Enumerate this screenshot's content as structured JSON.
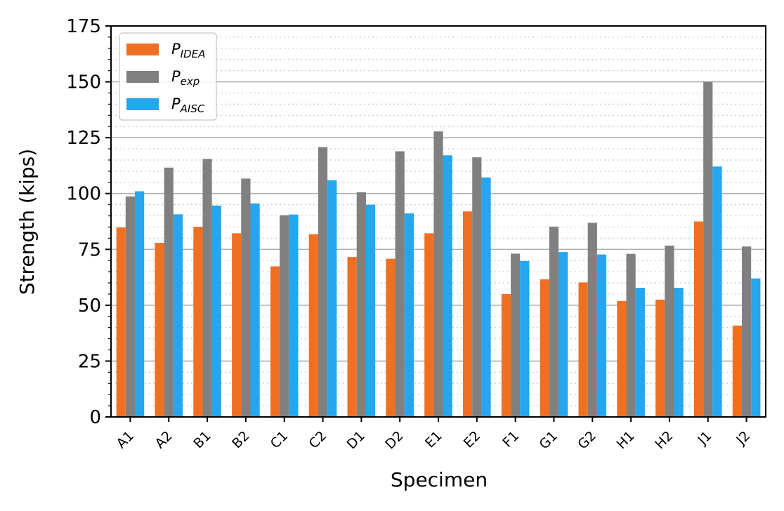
{
  "chart_data": {
    "type": "bar",
    "categories": [
      "A1",
      "A2",
      "B1",
      "B2",
      "C1",
      "C2",
      "D1",
      "D2",
      "E1",
      "E2",
      "F1",
      "G1",
      "G2",
      "H1",
      "H2",
      "J1",
      "J2"
    ],
    "series": [
      {
        "name": "P_IDEA",
        "label_base": "P",
        "label_sub": "IDEA",
        "color": "#f07023",
        "values": [
          84.8,
          77.9,
          85.1,
          82.2,
          67.4,
          81.8,
          71.6,
          70.8,
          82.2,
          92.0,
          55.0,
          61.6,
          60.2,
          51.9,
          52.5,
          87.5,
          40.9
        ]
      },
      {
        "name": "P_exp",
        "label_base": "P",
        "label_sub": "exp",
        "color": "#808080",
        "values": [
          98.7,
          111.6,
          115.5,
          106.7,
          90.3,
          120.8,
          100.6,
          118.9,
          127.8,
          116.2,
          73.1,
          85.2,
          86.9,
          73.0,
          76.7,
          150.0,
          76.3
        ]
      },
      {
        "name": "P_AISC",
        "label_base": "P",
        "label_sub": "AISC",
        "color": "#25a6ee",
        "values": [
          101.0,
          90.7,
          94.6,
          95.6,
          90.6,
          105.9,
          95.0,
          91.1,
          117.1,
          107.2,
          69.8,
          73.8,
          72.7,
          57.8,
          57.8,
          112.1,
          62.0
        ]
      }
    ],
    "title": "",
    "xlabel": "Specimen",
    "ylabel": "Strength (kips)",
    "ylim": [
      0,
      175
    ],
    "y_ticks": [
      0,
      25,
      50,
      75,
      100,
      125,
      150,
      175
    ],
    "major_grid_step": 25,
    "minor_grid_step": 5,
    "grid": true,
    "legend_position": "top-left"
  }
}
